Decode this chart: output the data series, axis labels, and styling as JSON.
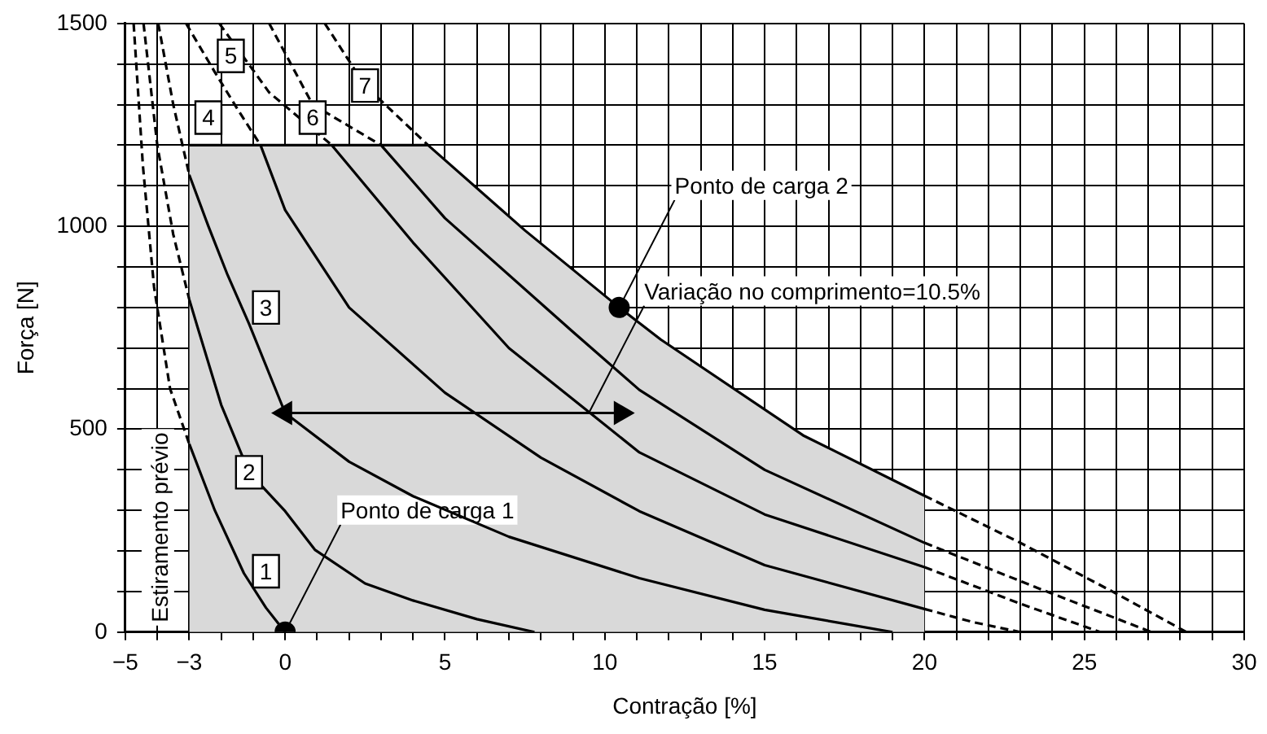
{
  "chart_data": {
    "type": "line",
    "xlabel": "Contração [%]",
    "ylabel": "Força [N]",
    "xlim": [
      -5,
      30
    ],
    "ylim": [
      0,
      1500
    ],
    "xticks": [
      -5,
      {
        "value": -4,
        "label": null
      },
      -3,
      {
        "value": -2,
        "label": null
      },
      {
        "value": -1,
        "label": null
      },
      0,
      {
        "value": 1,
        "label": null
      },
      {
        "value": 2,
        "label": null
      },
      {
        "value": 3,
        "label": null
      },
      {
        "value": 4,
        "label": null
      },
      5,
      {
        "value": 6,
        "label": null
      },
      {
        "value": 7,
        "label": null
      },
      {
        "value": 8,
        "label": null
      },
      {
        "value": 9,
        "label": null
      },
      10,
      {
        "value": 11,
        "label": null
      },
      {
        "value": 12,
        "label": null
      },
      {
        "value": 13,
        "label": null
      },
      {
        "value": 14,
        "label": null
      },
      15,
      {
        "value": 16,
        "label": null
      },
      {
        "value": 17,
        "label": null
      },
      {
        "value": 18,
        "label": null
      },
      {
        "value": 19,
        "label": null
      },
      20,
      {
        "value": 21,
        "label": null
      },
      {
        "value": 22,
        "label": null
      },
      {
        "value": 23,
        "label": null
      },
      {
        "value": 24,
        "label": null
      },
      25,
      {
        "value": 26,
        "label": null
      },
      {
        "value": 27,
        "label": null
      },
      {
        "value": 28,
        "label": null
      },
      {
        "value": 29,
        "label": null
      },
      30
    ],
    "yticks": [
      0,
      {
        "value": 100,
        "label": null
      },
      {
        "value": 200,
        "label": null
      },
      {
        "value": 300,
        "label": null
      },
      {
        "value": 400,
        "label": null
      },
      500,
      {
        "value": 600,
        "label": null
      },
      {
        "value": 700,
        "label": null
      },
      {
        "value": 800,
        "label": null
      },
      {
        "value": 900,
        "label": null
      },
      1000,
      {
        "value": 1100,
        "label": null
      },
      {
        "value": 1200,
        "label": null
      },
      {
        "value": 1300,
        "label": null
      },
      {
        "value": 1400,
        "label": null
      },
      1500
    ],
    "grid": true,
    "legend": false,
    "marker": "none",
    "series": [
      {
        "type": "area",
        "color": "#d9d9d9",
        "x": [
          -3,
          4.47,
          7.5,
          10.45,
          11.75,
          16.2,
          20
        ],
        "values": [
          1200,
          1200,
          990,
          800,
          721,
          485,
          336
        ]
      },
      {
        "line_style": "dashed",
        "color": "#000000",
        "x": [
          -4.74,
          -4.45,
          -4.1,
          -3.6,
          -3
        ],
        "values": [
          1500,
          1150,
          850,
          600,
          464
        ]
      },
      {
        "type": "line",
        "line_style": "solid",
        "color": "#000000",
        "x": [
          -3,
          -2.2,
          -1.29,
          -0.6,
          0
        ],
        "values": [
          464,
          300,
          145,
          60,
          0
        ]
      },
      {
        "type": "line",
        "line_style": "dashed",
        "color": "#000000",
        "x": [
          -4.43,
          -4,
          -3.5,
          -3
        ],
        "values": [
          1500,
          1200,
          980,
          820
        ]
      },
      {
        "type": "line",
        "line_style": "solid",
        "color": "#000000",
        "x": [
          -3,
          -2.75,
          -2,
          -1.13,
          0,
          0.93,
          2.5,
          4,
          6,
          7.8
        ],
        "values": [
          820,
          754,
          560,
          394,
          298,
          203,
          120,
          78,
          32,
          0
        ]
      },
      {
        "type": "line",
        "line_style": "dashed",
        "color": "#000000",
        "x": [
          -3.97,
          -3.5,
          -3
        ],
        "values": [
          1500,
          1300,
          1127
        ]
      },
      {
        "type": "line",
        "line_style": "solid",
        "color": "#000000",
        "x": [
          -3,
          -2.4,
          -1.8,
          -1.13,
          0,
          2,
          4,
          7,
          11.08,
          15,
          19
        ],
        "values": [
          1127,
          1000,
          880,
          760,
          540,
          420,
          335,
          235,
          133,
          55,
          0
        ]
      },
      {
        "type": "line",
        "line_style": "dashed",
        "color": "#000000",
        "x": [
          -3.1,
          -2.2,
          -1.5,
          -0.77
        ],
        "values": [
          1500,
          1380,
          1290,
          1200
        ]
      },
      {
        "type": "line",
        "line_style": "solid",
        "color": "#000000",
        "x": [
          -0.77,
          0,
          2,
          5,
          8,
          11.08,
          15,
          20
        ],
        "values": [
          1200,
          1040,
          800,
          590,
          430,
          298,
          165,
          57
        ]
      },
      {
        "type": "line",
        "line_style": "dashed",
        "color": "#000000",
        "x": [
          20,
          21.5,
          23
        ],
        "values": [
          57,
          25,
          0
        ]
      },
      {
        "type": "line",
        "line_style": "dashed",
        "color": "#000000",
        "x": [
          -2.06,
          -0.5,
          1.46
        ],
        "values": [
          1500,
          1330,
          1200
        ]
      },
      {
        "type": "line",
        "line_style": "solid",
        "color": "#000000",
        "x": [
          1.46,
          4,
          7,
          11.08,
          15,
          20
        ],
        "values": [
          1200,
          960,
          700,
          443,
          290,
          160
        ]
      },
      {
        "type": "line",
        "line_style": "dashed",
        "color": "#000000",
        "x": [
          20,
          23,
          25.5
        ],
        "values": [
          160,
          70,
          0
        ]
      },
      {
        "type": "line",
        "line_style": "dashed",
        "color": "#000000",
        "x": [
          -0.5,
          0.86,
          3
        ],
        "values": [
          1500,
          1300,
          1200
        ]
      },
      {
        "type": "line",
        "line_style": "solid",
        "color": "#000000",
        "x": [
          3,
          5,
          9,
          11.08,
          15,
          20
        ],
        "values": [
          1200,
          1020,
          740,
          597,
          400,
          220
        ]
      },
      {
        "type": "line",
        "line_style": "dashed",
        "color": "#000000",
        "x": [
          20,
          23.5,
          27.1
        ],
        "values": [
          220,
          110,
          0
        ]
      },
      {
        "type": "line",
        "line_style": "dashed",
        "color": "#000000",
        "x": [
          1.24,
          2.5,
          4.47
        ],
        "values": [
          1500,
          1347,
          1200
        ]
      },
      {
        "type": "line",
        "line_style": "dashed",
        "color": "#000000",
        "x": [
          20,
          23,
          25.9,
          28.2
        ],
        "values": [
          336,
          220,
          99,
          0
        ]
      },
      {
        "type": "line",
        "line_style": "solid",
        "marker": "triangle",
        "color": "#000000",
        "x": [
          0,
          10.5
        ],
        "values": [
          540,
          540
        ]
      },
      {
        "type": "scatter",
        "marker": "circle",
        "color": "#000000",
        "x": [
          0,
          10.45
        ],
        "values": [
          0,
          800
        ]
      }
    ],
    "annotations": [
      {
        "text": "1",
        "x": -0.6,
        "y": 150
      },
      {
        "text": "2",
        "x": -1.13,
        "y": 394
      },
      {
        "text": "3",
        "x": -0.6,
        "y": 800
      },
      {
        "text": "4",
        "x": -2.4,
        "y": 1268
      },
      {
        "text": "5",
        "x": -1.7,
        "y": 1420
      },
      {
        "text": "6",
        "x": 0.86,
        "y": 1268
      },
      {
        "text": "7",
        "x": 2.5,
        "y": 1347
      },
      {
        "text": "Ponto de carga 1",
        "x": 0,
        "y": 0
      },
      {
        "text": "Ponto de carga 2",
        "x": 10.45,
        "y": 800
      },
      {
        "text": "Variação no comprimento=10.5%",
        "x": 9.5,
        "y": 540
      },
      "Estiramento prévio"
    ]
  }
}
